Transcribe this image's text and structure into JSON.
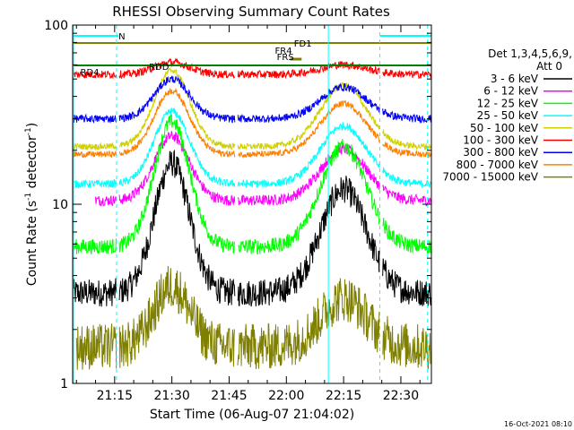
{
  "chart_data": {
    "type": "line",
    "title": "RHESSI Observing Summary Count Rates",
    "xlabel": "Start Time (06-Aug-07 21:04:02)",
    "ylabel_main": "Count Rate (s",
    "ylabel_sup": "-1",
    "ylabel_rest": " detector",
    "ylabel_sup2": "-1",
    "ylabel_end": ")",
    "ylog": true,
    "ylim": [
      1,
      100
    ],
    "xlim_min": [
      1264,
      1358
    ],
    "x_ticks": [
      {
        "v": 1275,
        "label": "21:15"
      },
      {
        "v": 1290,
        "label": "21:30"
      },
      {
        "v": 1305,
        "label": "21:45"
      },
      {
        "v": 1320,
        "label": "22:00"
      },
      {
        "v": 1335,
        "label": "22:15"
      },
      {
        "v": 1350,
        "label": "22:30"
      }
    ],
    "y_ticks": [
      {
        "v": 1,
        "label": "1"
      },
      {
        "v": 10,
        "label": "10"
      },
      {
        "v": 100,
        "label": "100"
      }
    ],
    "legend_header": [
      "Det 1,3,4,5,6,9,",
      "Att 0"
    ],
    "legend_placement": "right",
    "series": [
      {
        "name": "3 - 6 keV",
        "color": "#000000",
        "base": 3.2,
        "peak": 17,
        "noise": 0.18
      },
      {
        "name": "6 - 12 keV",
        "color": "#ff00ff",
        "base": 10.5,
        "peak": 24,
        "noise": 0.07
      },
      {
        "name": "12 - 25 keV",
        "color": "#00ff00",
        "base": 5.8,
        "peak": 29,
        "noise": 0.1
      },
      {
        "name": "25 - 50 keV",
        "color": "#00ffff",
        "base": 13,
        "peak": 33,
        "noise": 0.05
      },
      {
        "name": "50 - 100 keV",
        "color": "#d0d000",
        "base": 21,
        "peak": 56,
        "noise": 0.04
      },
      {
        "name": "100 - 300 keV",
        "color": "#ff0000",
        "base": 53,
        "peak": 62,
        "noise": 0.05
      },
      {
        "name": "300 - 800 keV",
        "color": "#0000ff",
        "base": 30,
        "peak": 50,
        "noise": 0.05
      },
      {
        "name": "800 - 7000 keV",
        "color": "#ff8000",
        "base": 19,
        "peak": 43,
        "noise": 0.04
      },
      {
        "name": "7000 - 15000 keV",
        "color": "#808000",
        "base": 1.6,
        "peak": 3.5,
        "noise": 0.3
      }
    ],
    "annotations": {
      "N": "N",
      "FD1": "FD1",
      "FR4": "FR4",
      "FRS": "FRS",
      "RD4": "RD4",
      "RDD": "RDD"
    },
    "status_bar_colors": {
      "N": "#00ffff",
      "FD": "#808000",
      "RD": "#008000"
    },
    "footer_date": "16-Oct-2021 08:10"
  }
}
